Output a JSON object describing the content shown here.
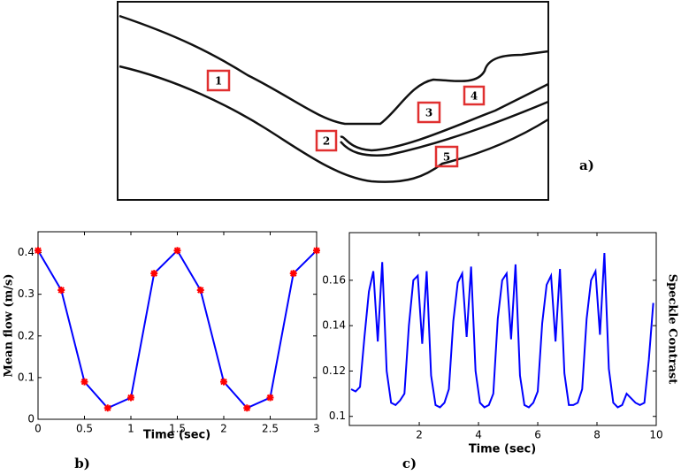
{
  "diagram": {
    "labels": [
      "1",
      "2",
      "3",
      "4",
      "5"
    ],
    "panel_label": "a)"
  },
  "chart_data": [
    {
      "type": "line",
      "panel_label": "b)",
      "x_label": "Time (sec)",
      "y_label": "Mean flow (m/s)",
      "x": [
        0,
        0.25,
        0.5,
        0.75,
        1,
        1.25,
        1.5,
        1.75,
        2,
        2.25,
        2.5,
        2.75,
        3
      ],
      "values": [
        0.405,
        0.31,
        0.09,
        0.027,
        0.052,
        0.35,
        0.405,
        0.31,
        0.09,
        0.027,
        0.052,
        0.35,
        0.405
      ],
      "color": "#0000ff",
      "marker_color": "#ff0000",
      "xlim": [
        0,
        3
      ],
      "ylim": [
        0,
        0.45
      ],
      "xticks": [
        0,
        0.5,
        1,
        1.5,
        2,
        2.5,
        3
      ],
      "yticks": [
        0,
        0.1,
        0.2,
        0.3,
        0.4
      ]
    },
    {
      "type": "line",
      "panel_label": "c)",
      "x_label": "Time (sec)",
      "y_label": "Speckle Contrast",
      "x": [
        -0.3,
        -0.15,
        0,
        0.15,
        0.3,
        0.45,
        0.6,
        0.75,
        0.9,
        1.05,
        1.2,
        1.35,
        1.5,
        1.65,
        1.8,
        1.95,
        2.1,
        2.25,
        2.4,
        2.55,
        2.7,
        2.85,
        3,
        3.15,
        3.3,
        3.45,
        3.6,
        3.75,
        3.9,
        4.05,
        4.2,
        4.35,
        4.5,
        4.65,
        4.8,
        4.95,
        5.1,
        5.25,
        5.4,
        5.55,
        5.7,
        5.85,
        6,
        6.15,
        6.3,
        6.45,
        6.6,
        6.75,
        6.9,
        7.05,
        7.2,
        7.35,
        7.5,
        7.65,
        7.8,
        7.95,
        8.1,
        8.25,
        8.4,
        8.55,
        8.7,
        8.85,
        9,
        9.15,
        9.3,
        9.45,
        9.6,
        9.75,
        9.9
      ],
      "values": [
        0.112,
        0.111,
        0.113,
        0.135,
        0.155,
        0.164,
        0.133,
        0.168,
        0.12,
        0.106,
        0.105,
        0.107,
        0.11,
        0.14,
        0.16,
        0.162,
        0.132,
        0.164,
        0.118,
        0.105,
        0.104,
        0.106,
        0.112,
        0.142,
        0.159,
        0.163,
        0.135,
        0.166,
        0.12,
        0.106,
        0.104,
        0.105,
        0.11,
        0.143,
        0.16,
        0.163,
        0.134,
        0.167,
        0.118,
        0.105,
        0.104,
        0.106,
        0.111,
        0.141,
        0.158,
        0.162,
        0.133,
        0.165,
        0.119,
        0.105,
        0.105,
        0.106,
        0.112,
        0.143,
        0.16,
        0.164,
        0.136,
        0.172,
        0.121,
        0.106,
        0.104,
        0.105,
        0.11,
        0.108,
        0.106,
        0.105,
        0.106,
        0.125,
        0.15
      ],
      "color": "#0000ff",
      "xlim": [
        -0.36,
        10
      ],
      "ylim": [
        0.096,
        0.181
      ],
      "xticks": [
        2,
        4,
        6,
        8,
        10
      ],
      "yticks": [
        0.1,
        0.12,
        0.14,
        0.16
      ]
    }
  ]
}
